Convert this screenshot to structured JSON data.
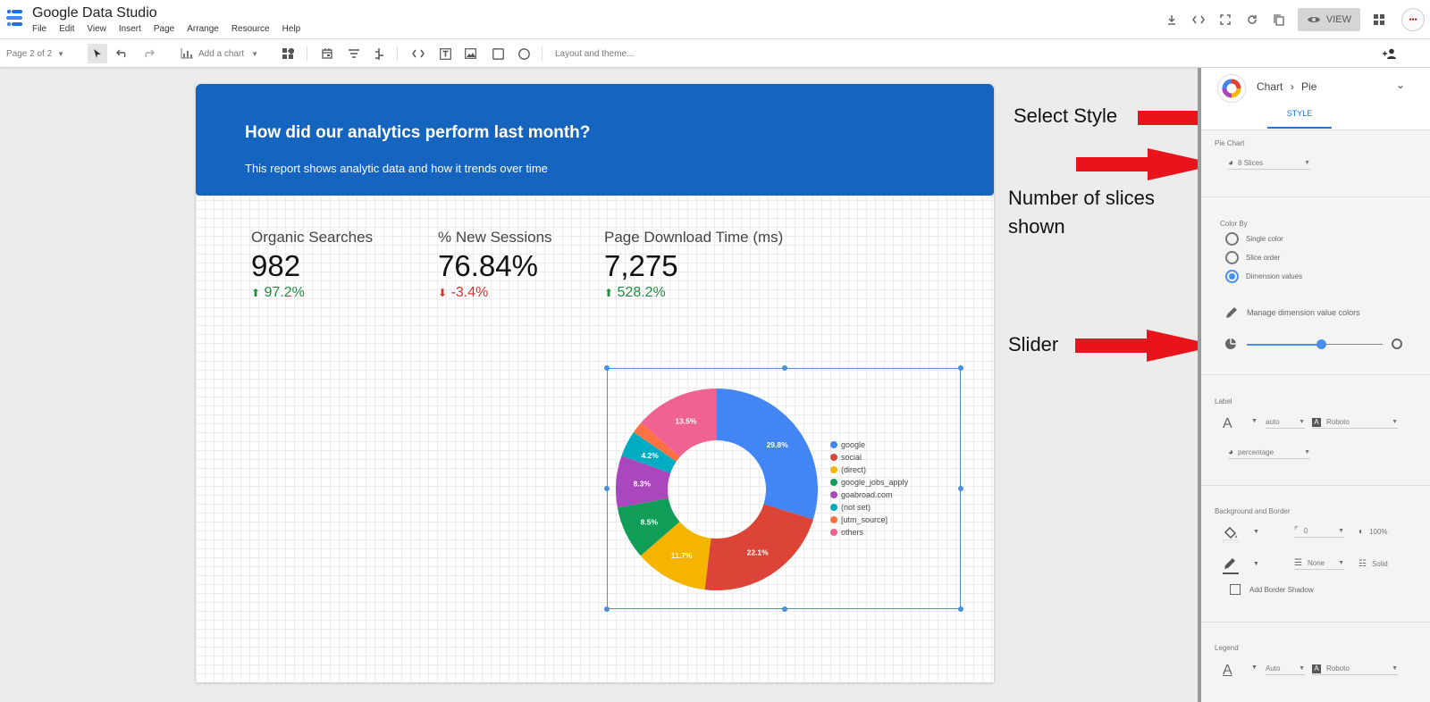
{
  "app": {
    "title": "Google Data Studio",
    "menu": [
      "File",
      "Edit",
      "View",
      "Insert",
      "Page",
      "Arrange",
      "Resource",
      "Help"
    ],
    "view_label": "VIEW"
  },
  "toolbar": {
    "page_indicator": "Page 2 of 2",
    "add_chart": "Add a chart",
    "layout_theme": "Layout and theme..."
  },
  "report": {
    "title": "How did our analytics perform last month?",
    "subtitle": "This report shows analytic data and how it trends over time",
    "kpis": [
      {
        "label": "Organic Searches",
        "value": "982",
        "delta": "97.2%",
        "direction": "up"
      },
      {
        "label": "% New Sessions",
        "value": "76.84%",
        "delta": "-3.4%",
        "direction": "down"
      },
      {
        "label": "Page Download Time (ms)",
        "value": "7,275",
        "delta": "528.2%",
        "direction": "up"
      }
    ]
  },
  "chart_data": {
    "type": "pie",
    "donut": true,
    "legend": "right",
    "categories": [
      "google",
      "social",
      "(direct)",
      "google_jobs_apply",
      "goabroad.com",
      "(not set)",
      "[utm_source]",
      "others"
    ],
    "values": [
      29.8,
      22.1,
      11.7,
      8.5,
      8.3,
      4.2,
      1.9,
      13.5
    ],
    "labels": [
      "29.8%",
      "22.1%",
      "11.7%",
      "8.5%",
      "8.3%",
      "4.2%",
      "",
      "13.5%"
    ],
    "colors": [
      "#4285f4",
      "#db4437",
      "#f4b400",
      "#0f9d58",
      "#ab47bc",
      "#00acc1",
      "#ff7043",
      "#f06292"
    ]
  },
  "annotations": {
    "select_style": "Select Style",
    "slices_line1": "Number of slices",
    "slices_line2": "shown",
    "slider": "Slider",
    "arrow_color": "#e8131b"
  },
  "panel": {
    "breadcrumb_chart": "Chart",
    "breadcrumb_sep": "›",
    "breadcrumb_type": "Pie",
    "tab_style": "STYLE",
    "pie_chart_section": "Pie Chart",
    "slices_value": "8 Slices",
    "color_by": "Color By",
    "color_options": [
      "Single color",
      "Slice order",
      "Dimension values"
    ],
    "manage_colors": "Manage dimension value colors",
    "slider_value": 0.55,
    "label_section": "Label",
    "label_size": "auto",
    "label_font": "Roboto",
    "label_type": "percentage",
    "bg_section": "Background and Border",
    "border_radius": "0",
    "opacity": "100%",
    "border_weight": "None",
    "border_style": "Solid",
    "border_shadow": "Add Border Shadow",
    "legend_section": "Legend",
    "legend_size": "Auto",
    "legend_font": "Roboto"
  }
}
